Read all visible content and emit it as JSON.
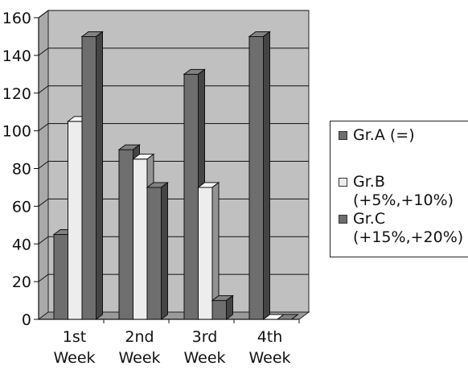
{
  "chart_data": {
    "type": "bar",
    "categories": [
      "1st Week",
      "2nd Week",
      "3rd Week",
      "4th Week"
    ],
    "series": [
      {
        "name": "Gr.A (=)",
        "values": [
          45,
          90,
          130,
          150
        ]
      },
      {
        "name": "Gr.B (+5%,+10%)",
        "values": [
          105,
          85,
          70,
          0
        ]
      },
      {
        "name": "Gr.C (+15%,+20%)",
        "values": [
          150,
          70,
          10,
          0
        ]
      }
    ],
    "ylim": [
      0,
      160
    ],
    "yticks": [
      0,
      20,
      40,
      60,
      80,
      100,
      120,
      140,
      160
    ],
    "grid": true,
    "three_d": true,
    "legend_position": "right",
    "colors": {
      "Gr.A": "#6e6e6e",
      "Gr.B": "#ededed",
      "Gr.C": "#6e6e6e",
      "plot_back": "#c0c0c0",
      "plot_side": "#a9a9a9",
      "floor": "#9a9a9a"
    }
  },
  "legend": {
    "items": [
      {
        "line1": "Gr.A (=)",
        "line2": "",
        "color": "#6e6e6e"
      },
      {
        "line1": "Gr.B",
        "line2": "(+5%,+10%)",
        "color": "#ededed"
      },
      {
        "line1": "Gr.C",
        "line2": "(+15%,+20%)",
        "color": "#6e6e6e"
      }
    ]
  }
}
